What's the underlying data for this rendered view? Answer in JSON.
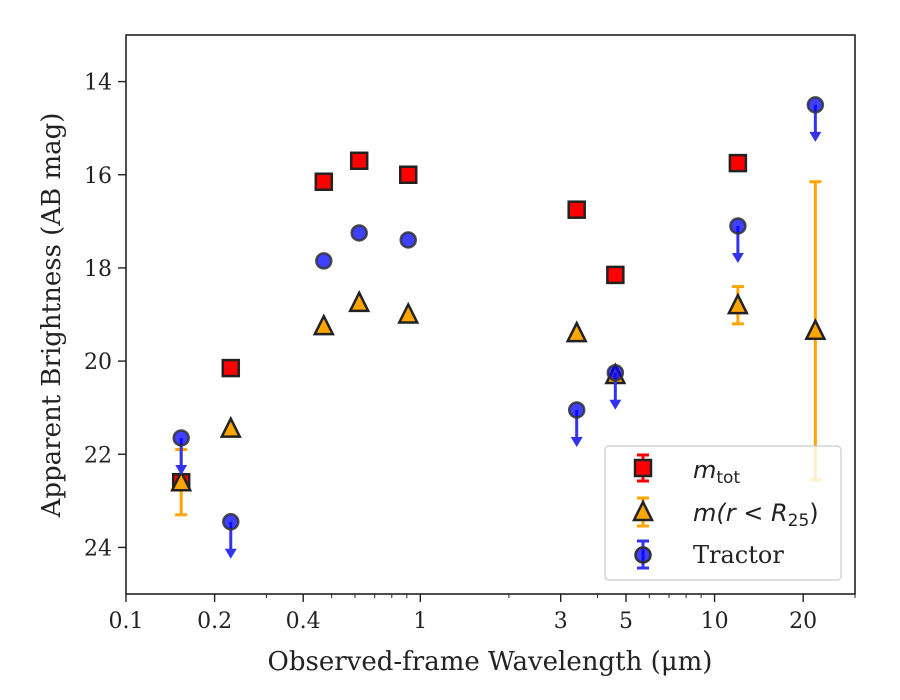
{
  "chart_data": {
    "type": "scatter",
    "xlabel": "Observed-frame Wavelength (μm)",
    "ylabel": "Apparent Brightness (AB mag)",
    "x_scale": "log",
    "xlim": [
      0.1,
      30
    ],
    "ylim": [
      25,
      13
    ],
    "y_inverted": true,
    "x_ticks": [
      0.1,
      0.2,
      0.4,
      1,
      3,
      5,
      10,
      20
    ],
    "x_tick_labels": [
      "0.1",
      "0.2",
      "0.4",
      "1",
      "3",
      "5",
      "10",
      "20"
    ],
    "y_ticks": [
      14,
      16,
      18,
      20,
      22,
      24
    ],
    "y_tick_labels": [
      "14",
      "16",
      "18",
      "20",
      "22",
      "24"
    ],
    "grid": false,
    "legend_position": "bottom-right",
    "series": [
      {
        "name": "m_tot",
        "legend_main": "m",
        "legend_sub": "tot",
        "marker": "square",
        "color": "#ff0000",
        "edge_color": "#222222",
        "points": [
          {
            "x": 0.154,
            "y": 22.6
          },
          {
            "x": 0.227,
            "y": 20.15
          },
          {
            "x": 0.47,
            "y": 16.15
          },
          {
            "x": 0.62,
            "y": 15.7
          },
          {
            "x": 0.91,
            "y": 16.0
          },
          {
            "x": 3.4,
            "y": 16.75
          },
          {
            "x": 4.6,
            "y": 18.15
          },
          {
            "x": 12.0,
            "y": 15.75
          }
        ]
      },
      {
        "name": "m(r < R25)",
        "legend_main": "m(r < R",
        "legend_sub": "25",
        "legend_tail": ")",
        "marker": "triangle",
        "color": "#ffa500",
        "edge_color": "#222222",
        "points": [
          {
            "x": 0.154,
            "y": 22.6,
            "err": 0.7
          },
          {
            "x": 0.227,
            "y": 21.45
          },
          {
            "x": 0.47,
            "y": 19.25
          },
          {
            "x": 0.62,
            "y": 18.75
          },
          {
            "x": 0.91,
            "y": 19.0
          },
          {
            "x": 3.4,
            "y": 19.4
          },
          {
            "x": 4.6,
            "y": 20.3
          },
          {
            "x": 12.0,
            "y": 18.8,
            "err": 0.4
          },
          {
            "x": 22.0,
            "y": 19.35,
            "err": 3.2
          }
        ]
      },
      {
        "name": "Tractor",
        "marker": "circle",
        "color": "#0000ff",
        "edge_color": "#333333",
        "points": [
          {
            "x": 0.154,
            "y": 21.65,
            "upper_limit": true
          },
          {
            "x": 0.227,
            "y": 23.45,
            "upper_limit": true
          },
          {
            "x": 0.47,
            "y": 17.85
          },
          {
            "x": 0.62,
            "y": 17.25
          },
          {
            "x": 0.91,
            "y": 17.4
          },
          {
            "x": 3.4,
            "y": 21.05,
            "upper_limit": true
          },
          {
            "x": 4.6,
            "y": 20.25,
            "upper_limit": true
          },
          {
            "x": 12.0,
            "y": 17.1,
            "upper_limit": true
          },
          {
            "x": 22.0,
            "y": 14.5,
            "upper_limit": true
          }
        ]
      }
    ]
  }
}
